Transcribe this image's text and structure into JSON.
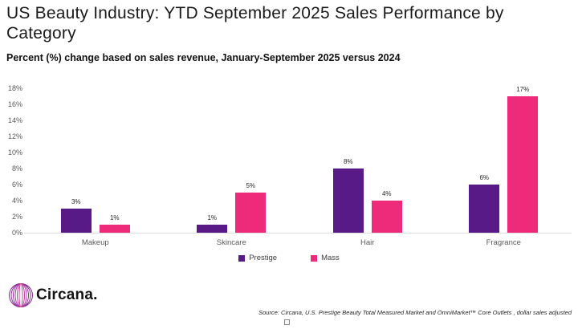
{
  "header": {
    "title": "US Beauty Industry: YTD September 2025 Sales Performance by Category",
    "subtitle": "Percent (%) change based on sales revenue, January-September 2025 versus 2024"
  },
  "chart_data": {
    "type": "bar",
    "title": "US Beauty Industry: YTD September 2025 Sales Performance by Category",
    "subtitle": "Percent (%) change based on sales revenue, January-September 2025 versus 2024",
    "categories": [
      "Makeup",
      "Skincare",
      "Hair",
      "Fragrance"
    ],
    "series": [
      {
        "name": "Prestige",
        "color": "#581a86",
        "values": [
          3,
          1,
          8,
          6
        ]
      },
      {
        "name": "Mass",
        "color": "#ee2a7b",
        "values": [
          1,
          5,
          4,
          17
        ]
      }
    ],
    "value_suffix": "%",
    "xlabel": "",
    "ylabel": "",
    "ylim": [
      0,
      18
    ],
    "ytick_step": 2,
    "ytick_labels": [
      "0%",
      "2%",
      "4%",
      "6%",
      "8%",
      "10%",
      "12%",
      "14%",
      "16%",
      "18%"
    ],
    "grid": false,
    "data_labels": true,
    "legend_position": "bottom"
  },
  "footer": {
    "logo_text": "Circana",
    "logo_period": ".",
    "source": "Source: Circana, U.S. Prestige Beauty Total Measured Market and OmniMarket™ Core Outlets , dollar sales adjusted"
  },
  "colors": {
    "prestige": "#581a86",
    "mass": "#ee2a7b",
    "logo_dot": "#e0218a",
    "axis_line": "#dcdcdc",
    "tick_label": "#595959"
  }
}
